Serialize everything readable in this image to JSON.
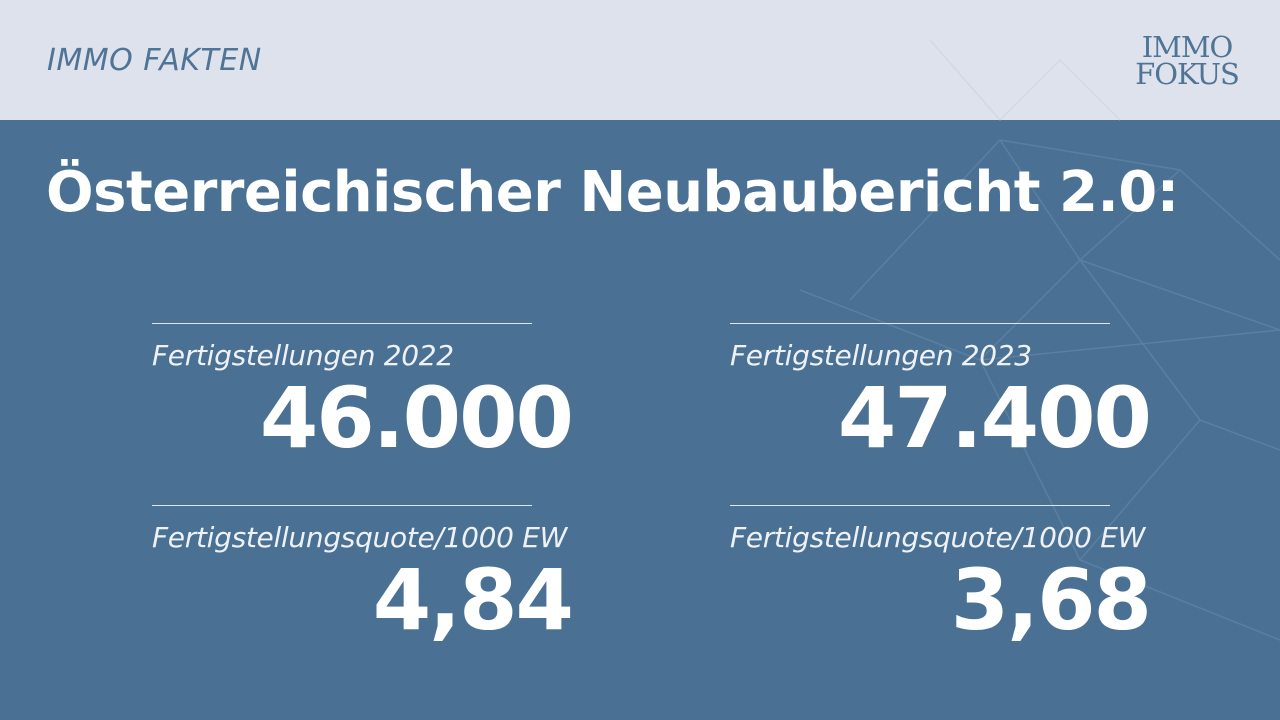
{
  "header": {
    "brand": "IMMO FAKTEN",
    "logo_line1": "IMMO",
    "logo_line2": "FOKUS"
  },
  "headline": "Österreichischer Neubaubericht 2.0:",
  "stats": [
    {
      "label": "Fertigstellungen 2022",
      "value": "46.000"
    },
    {
      "label": "Fertigstellungen 2023",
      "value": "47.400"
    },
    {
      "label": "Fertigstellungsquote/1000 EW",
      "value": "4,84"
    },
    {
      "label": "Fertigstellungsquote/1000 EW",
      "value": "3,68"
    }
  ],
  "colors": {
    "background": "#4a7193",
    "header_bar": "#dde2ec",
    "brand_text": "#4f7496",
    "text": "#ffffff"
  }
}
